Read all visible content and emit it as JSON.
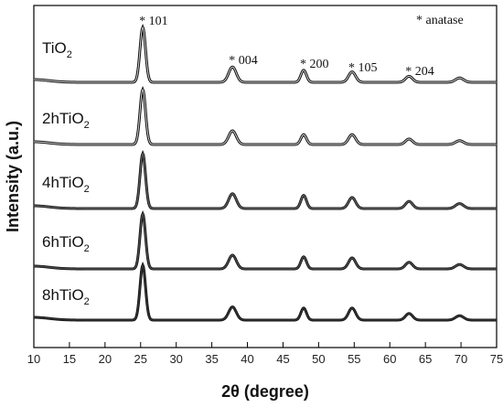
{
  "chart_data": {
    "type": "line",
    "xlabel": "2θ (degree)",
    "ylabel": "Intensity (a.u.)",
    "xlim": [
      10,
      75
    ],
    "xticks": [
      10,
      15,
      20,
      25,
      30,
      35,
      40,
      45,
      50,
      55,
      60,
      65,
      70,
      75
    ],
    "legend_note": "* anatase",
    "peak_labels": [
      {
        "x": 25.3,
        "label": "* 101"
      },
      {
        "x": 37.9,
        "label": "* 004"
      },
      {
        "x": 47.9,
        "label": "* 200"
      },
      {
        "x": 54.7,
        "label": "* 105"
      },
      {
        "x": 62.7,
        "label": "* 204"
      }
    ],
    "series": [
      {
        "name": "TiO2",
        "base": "TiO",
        "sub": "2",
        "intensity": [
          1.0,
          0.28,
          0.22,
          0.19,
          0.11,
          0.08
        ],
        "color": "#7a7a7a"
      },
      {
        "name": "2hTiO2",
        "base": "2hTiO",
        "sub": "2",
        "intensity": [
          1.0,
          0.25,
          0.18,
          0.18,
          0.1,
          0.07
        ],
        "color": "#6e6e6e"
      },
      {
        "name": "4hTiO2",
        "base": "4hTiO",
        "sub": "2",
        "intensity": [
          1.0,
          0.27,
          0.24,
          0.2,
          0.13,
          0.09
        ],
        "color": "#5a5a5a"
      },
      {
        "name": "6hTiO2",
        "base": "6hTiO",
        "sub": "2",
        "intensity": [
          1.0,
          0.25,
          0.22,
          0.2,
          0.12,
          0.08
        ],
        "color": "#4a4a4a"
      },
      {
        "name": "8hTiO2",
        "base": "8hTiO",
        "sub": "2",
        "intensity": [
          1.0,
          0.24,
          0.22,
          0.22,
          0.12,
          0.08
        ],
        "color": "#333333"
      }
    ],
    "peak_positions": [
      25.3,
      37.9,
      47.9,
      54.7,
      62.7,
      69.8
    ],
    "grid": false
  }
}
